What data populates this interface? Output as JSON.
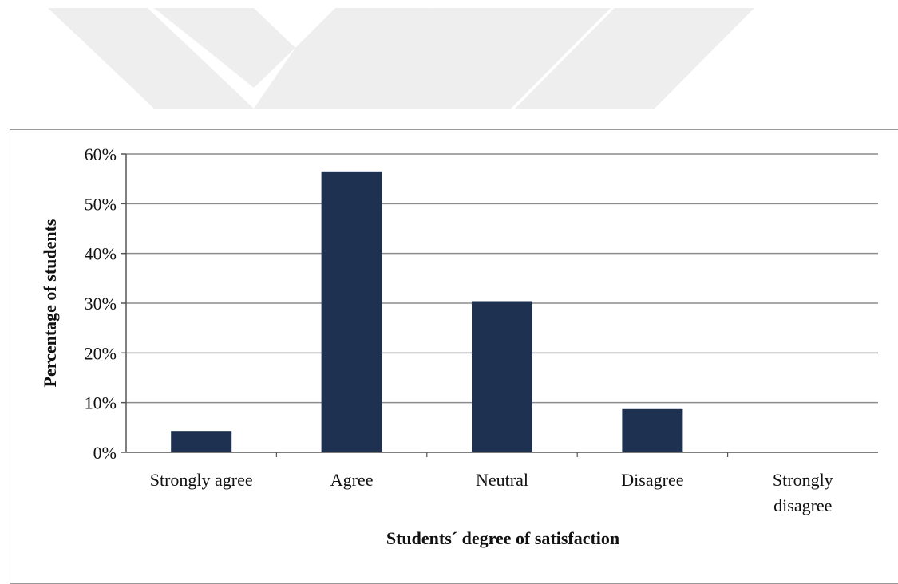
{
  "chart_data": {
    "type": "bar",
    "categories": [
      "Strongly agree",
      "Agree",
      "Neutral",
      "Disagree",
      "Strongly disagree"
    ],
    "values": [
      4.3,
      56.5,
      30.4,
      8.7,
      0
    ],
    "xlabel": "Students´ degree of satisfaction",
    "ylabel": "Percentage of students",
    "ylim": [
      0,
      60
    ],
    "yticks": [
      "0%",
      "10%",
      "20%",
      "30%",
      "40%",
      "50%",
      "60%"
    ],
    "grid": true,
    "bar_color": "#1f3150",
    "grid_color": "#8c8c8c",
    "watermark_color": "#eeeeee"
  }
}
